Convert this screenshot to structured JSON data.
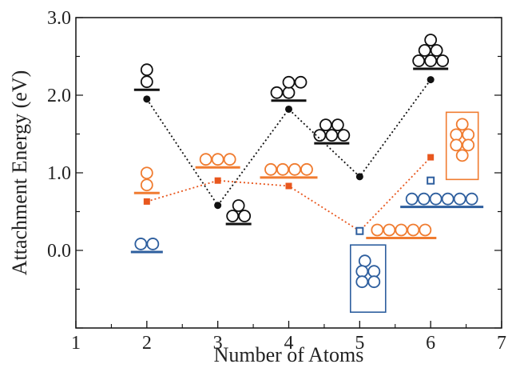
{
  "chart_data": {
    "type": "scatter",
    "title": "",
    "xlabel": "Number of Atoms",
    "ylabel": "Attachment Energy (eV)",
    "xlim": [
      1,
      7
    ],
    "ylim": [
      -1.0,
      3.0
    ],
    "x_ticks": [
      1,
      2,
      3,
      4,
      5,
      6,
      7
    ],
    "y_ticks": [
      0.0,
      1.0,
      2.0,
      3.0
    ],
    "x_tick_labels": [
      "1",
      "2",
      "3",
      "4",
      "5",
      "6",
      "7"
    ],
    "y_tick_labels": [
      "0.0",
      "1.0",
      "2.0",
      "3.0"
    ],
    "grid": false,
    "colors": {
      "black": "#111111",
      "orange": "#f07c30",
      "blue": "#2d5e9e",
      "orange_marker": "#e8571e"
    },
    "series": [
      {
        "color": "black",
        "marker": "circle-filled",
        "line": "dotted",
        "x": [
          2,
          3,
          4,
          5,
          6
        ],
        "y": [
          1.95,
          0.58,
          1.82,
          0.95,
          2.2
        ],
        "levels": [
          {
            "x": 2,
            "y": 2.07,
            "cluster": "2-vertical"
          },
          {
            "x": 3,
            "y": 0.34,
            "cluster": "3-triangle"
          },
          {
            "x": 4,
            "y": 1.93,
            "cluster": "4-rhombus"
          },
          {
            "x": 5,
            "y": 1.38,
            "cluster": "5-trapezoid"
          },
          {
            "x": 6,
            "y": 2.34,
            "cluster": "6-triangle"
          }
        ]
      },
      {
        "color": "orange",
        "marker": "square-filled",
        "line": "dotted",
        "x": [
          2,
          3,
          4,
          5,
          6
        ],
        "y": [
          0.63,
          0.9,
          0.83,
          0.25,
          1.2
        ],
        "levels": [
          {
            "x": 2,
            "y": 0.74,
            "cluster": "2-vertical"
          },
          {
            "x": 3,
            "y": 1.07,
            "cluster": "3-row"
          },
          {
            "x": 4,
            "y": 0.94,
            "cluster": "4-row"
          },
          {
            "x": 5,
            "y": 0.16,
            "cluster": "5-row"
          },
          {
            "x": 6,
            "y": 1.2,
            "cluster": "6-boxed"
          }
        ]
      },
      {
        "color": "blue",
        "marker": "square-open",
        "line": "none",
        "x": [
          5,
          6
        ],
        "y": [
          0.25,
          0.9
        ],
        "levels": [
          {
            "x": 2,
            "y": -0.02,
            "cluster": "2-row"
          },
          {
            "x": 5,
            "y": -0.38,
            "cluster": "5-boxed"
          },
          {
            "x": 6,
            "y": 0.56,
            "cluster": "6-row"
          }
        ]
      }
    ]
  }
}
